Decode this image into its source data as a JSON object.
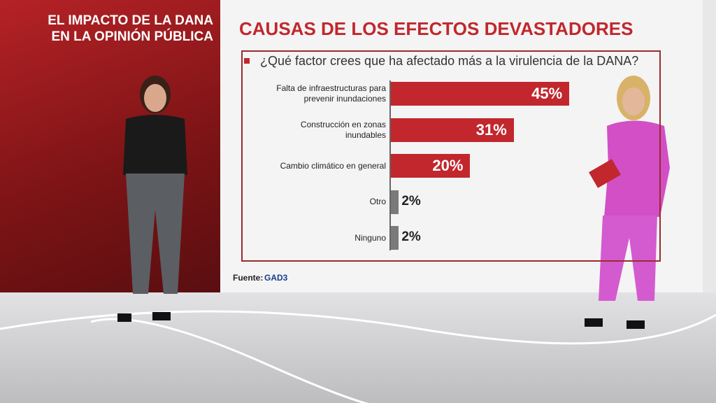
{
  "overlay": {
    "title_lines": [
      "EL IMPACTO DE LA DANA",
      "EN LA OPINIÓN PÚBLICA"
    ]
  },
  "chart_data": {
    "type": "hbar",
    "title": "CAUSAS DE LOS EFECTOS DEVASTADORES",
    "subtitle": "¿Qué factor crees que ha afectado más a la virulencia de la DANA?",
    "categories": [
      "Falta de infraestructuras para prevenir inundaciones",
      "Construcción en zonas inundables",
      "Cambio climático en general",
      "Otro",
      "Ninguno"
    ],
    "values": [
      45,
      31,
      20,
      2,
      2
    ],
    "value_labels": [
      "45%",
      "31%",
      "20%",
      "2%",
      "2%"
    ],
    "colors": [
      "#c1272d",
      "#c1272d",
      "#c1272d",
      "#7a7a7a",
      "#7a7a7a"
    ],
    "source": "Fuente:",
    "source_name": "GAD3"
  }
}
